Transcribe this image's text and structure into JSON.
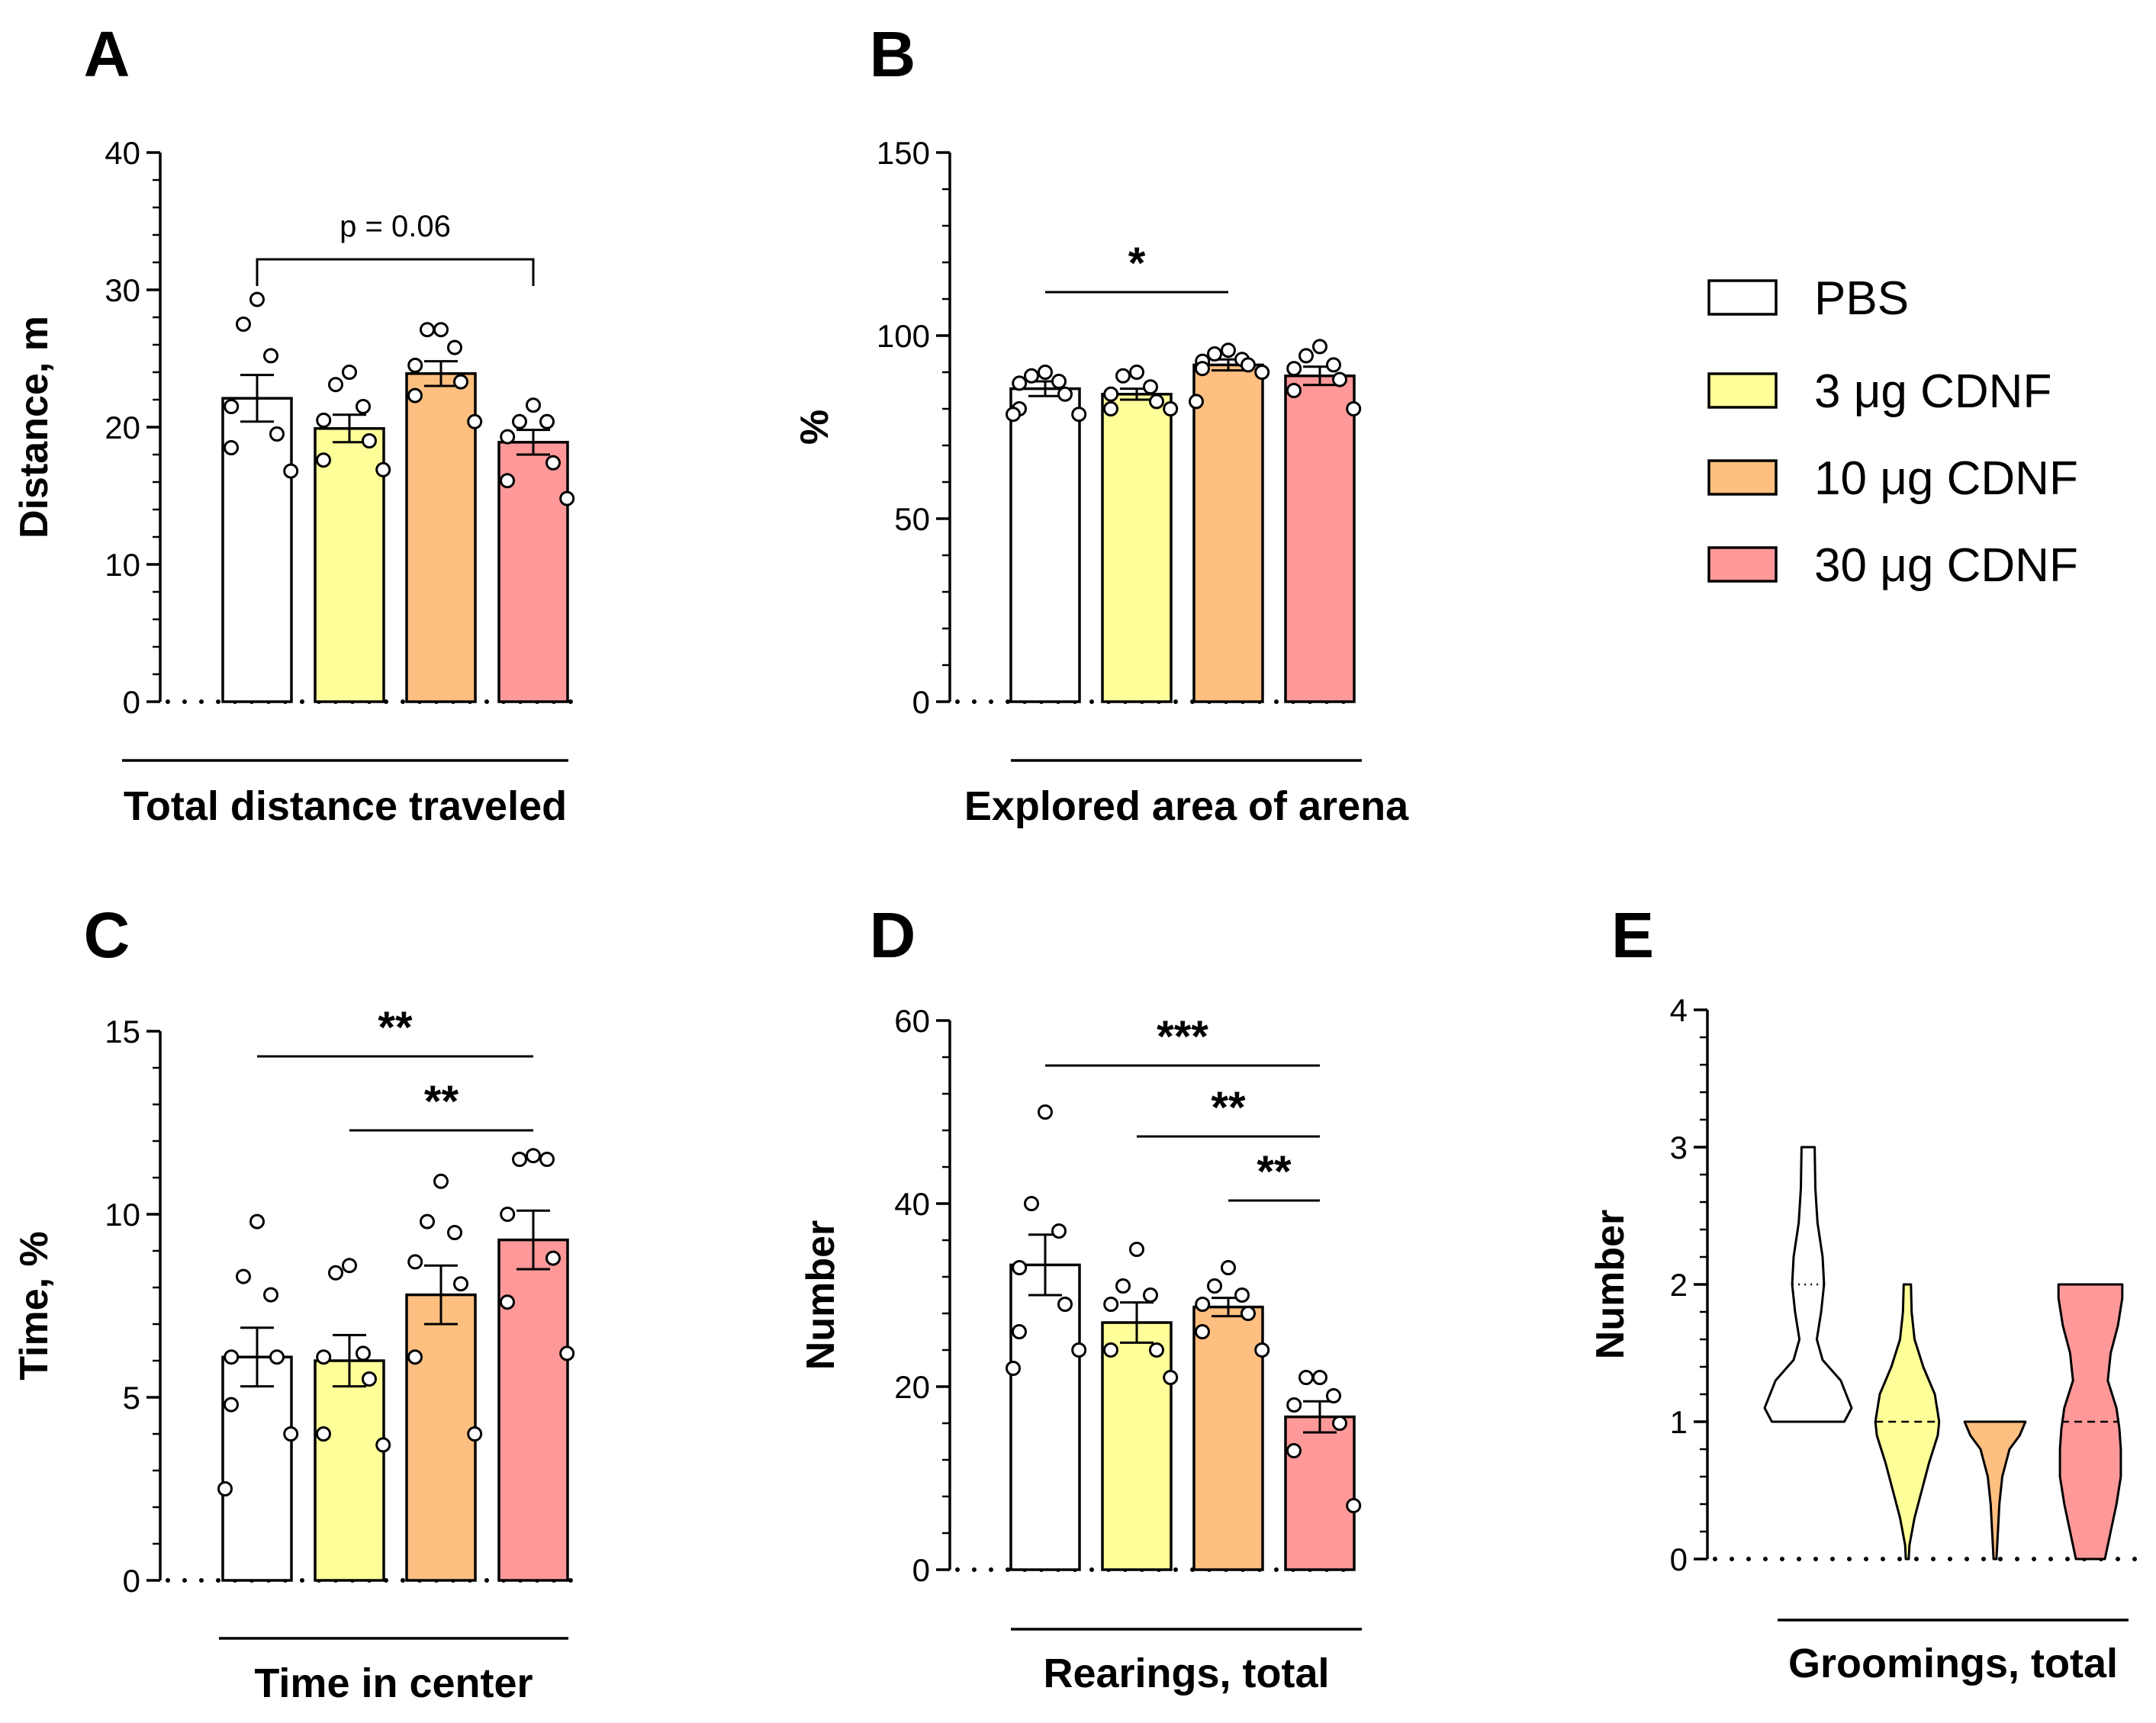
{
  "legend": [
    {
      "label": "PBS",
      "color": "#ffffff"
    },
    {
      "label": "3 μg CDNF",
      "color": "#ffff99"
    },
    {
      "label": "10 μg CDNF",
      "color": "#ffbf80"
    },
    {
      "label": "30 μg CDNF",
      "color": "#ff9999"
    }
  ],
  "chart_data": [
    {
      "panel": "A",
      "type": "bar",
      "categories": [
        "PBS",
        "3 μg CDNF",
        "10 μg CDNF",
        "30 μg CDNF"
      ],
      "values": [
        22.1,
        19.9,
        23.9,
        18.9
      ],
      "sem": [
        1.7,
        1.0,
        0.9,
        0.9
      ],
      "points": [
        [
          29.3,
          27.5,
          25.2,
          21.5,
          19.5,
          18.5,
          16.8
        ],
        [
          24.0,
          23.1,
          21.5,
          20.5,
          19.0,
          17.6,
          16.9
        ],
        [
          27.1,
          27.1,
          25.8,
          24.5,
          23.3,
          22.3,
          20.4
        ],
        [
          21.6,
          20.4,
          20.4,
          19.3,
          17.4,
          16.1,
          14.8
        ]
      ],
      "ylabel": "Distance, m",
      "xlabel": "Total distance traveled",
      "ylim": [
        0,
        40
      ],
      "yticks": [
        "0",
        "10",
        "20",
        "30",
        "40"
      ],
      "annotations": [
        {
          "from": 0,
          "to": 3,
          "text": "p = 0.06"
        }
      ]
    },
    {
      "panel": "B",
      "type": "bar",
      "categories": [
        "PBS",
        "3 μg CDNF",
        "10 μg CDNF",
        "30 μg CDNF"
      ],
      "values": [
        85.5,
        84.0,
        92.0,
        89.0
      ],
      "sem": [
        2.0,
        1.5,
        1.5,
        2.5
      ],
      "points": [
        [
          90.0,
          89.0,
          87.5,
          87.0,
          84.0,
          80.0,
          78.5,
          78.5
        ],
        [
          90.0,
          89.0,
          86.0,
          84.0,
          82.0,
          80.0,
          80.0
        ],
        [
          96.0,
          95.0,
          93.5,
          93.0,
          92.0,
          91.0,
          90.0,
          82.0
        ],
        [
          97.0,
          94.5,
          92.0,
          91.0,
          88.0,
          85.0,
          80.0
        ]
      ],
      "ylabel": "%",
      "xlabel": "Explored area of arena",
      "ylim": [
        0,
        150
      ],
      "yticks": [
        "0",
        "50",
        "100",
        "150"
      ],
      "annotations": [
        {
          "from": 0,
          "to": 2,
          "text": "*"
        }
      ]
    },
    {
      "panel": "C",
      "type": "bar",
      "categories": [
        "PBS",
        "3 μg CDNF",
        "10 μg CDNF",
        "30 μg CDNF"
      ],
      "values": [
        6.1,
        6.0,
        7.8,
        9.3
      ],
      "sem": [
        0.8,
        0.7,
        0.8,
        0.8
      ],
      "points": [
        [
          9.8,
          8.3,
          7.8,
          6.1,
          6.1,
          4.8,
          4.0,
          2.5
        ],
        [
          8.6,
          8.4,
          6.2,
          6.1,
          5.5,
          4.0,
          3.7
        ],
        [
          10.9,
          9.8,
          9.5,
          8.7,
          8.1,
          6.1,
          4.0
        ],
        [
          11.6,
          11.5,
          11.5,
          10.0,
          8.8,
          7.6,
          6.2
        ]
      ],
      "ylabel": "Time, %",
      "xlabel": "Time in center",
      "ylim": [
        0,
        15
      ],
      "yticks": [
        "0",
        "5",
        "10",
        "15"
      ],
      "annotations": [
        {
          "from": 0,
          "to": 3,
          "text": "**"
        },
        {
          "from": 1,
          "to": 3,
          "text": "**"
        }
      ]
    },
    {
      "panel": "D",
      "type": "bar",
      "categories": [
        "PBS",
        "3 μg CDNF",
        "10 μg CDNF",
        "30 μg CDNF"
      ],
      "values": [
        33.3,
        27.0,
        28.7,
        16.7
      ],
      "sem": [
        3.3,
        2.2,
        1.0,
        1.7
      ],
      "points": [
        [
          50.0,
          40.0,
          37.0,
          33.0,
          29.0,
          26.0,
          24.0,
          22.0
        ],
        [
          35.0,
          31.0,
          30.0,
          29.0,
          24.0,
          24.0,
          21.0
        ],
        [
          33.0,
          31.0,
          30.0,
          29.0,
          28.0,
          26.0,
          24.0
        ],
        [
          21.0,
          21.0,
          19.0,
          18.0,
          16.0,
          13.0,
          7.0
        ]
      ],
      "ylabel": "Number",
      "xlabel": "Rearings, total",
      "ylim": [
        0,
        60
      ],
      "yticks": [
        "0",
        "20",
        "40",
        "60"
      ],
      "annotations": [
        {
          "from": 0,
          "to": 3,
          "text": "***"
        },
        {
          "from": 1,
          "to": 3,
          "text": "**"
        },
        {
          "from": 2,
          "to": 3,
          "text": "**"
        }
      ]
    },
    {
      "panel": "E",
      "type": "violin",
      "categories": [
        "PBS",
        "3 μg CDNF",
        "10 μg CDNF",
        "30 μg CDNF"
      ],
      "medians": [
        2,
        1,
        1,
        1
      ],
      "violins": [
        [
          [
            1.0,
            0.5
          ],
          [
            1.1,
            0.6
          ],
          [
            1.3,
            0.45
          ],
          [
            1.45,
            0.2
          ],
          [
            1.6,
            0.12
          ],
          [
            1.8,
            0.18
          ],
          [
            2.0,
            0.22
          ],
          [
            2.2,
            0.2
          ],
          [
            2.45,
            0.13
          ],
          [
            2.7,
            0.1
          ],
          [
            3.0,
            0.09
          ]
        ],
        [
          [
            0.0,
            0.02
          ],
          [
            0.1,
            0.03
          ],
          [
            0.3,
            0.1
          ],
          [
            0.5,
            0.2
          ],
          [
            0.7,
            0.3
          ],
          [
            0.9,
            0.42
          ],
          [
            1.0,
            0.44
          ],
          [
            1.2,
            0.38
          ],
          [
            1.4,
            0.22
          ],
          [
            1.6,
            0.1
          ],
          [
            1.8,
            0.06
          ],
          [
            2.0,
            0.05
          ]
        ],
        [
          [
            0.0,
            0.02
          ],
          [
            0.2,
            0.04
          ],
          [
            0.4,
            0.06
          ],
          [
            0.6,
            0.1
          ],
          [
            0.8,
            0.2
          ],
          [
            0.9,
            0.34
          ],
          [
            1.0,
            0.42
          ]
        ],
        [
          [
            0.0,
            0.2
          ],
          [
            0.2,
            0.28
          ],
          [
            0.4,
            0.36
          ],
          [
            0.6,
            0.42
          ],
          [
            0.8,
            0.42
          ],
          [
            0.95,
            0.4
          ],
          [
            1.1,
            0.36
          ],
          [
            1.3,
            0.24
          ],
          [
            1.5,
            0.28
          ],
          [
            1.7,
            0.38
          ],
          [
            1.9,
            0.44
          ],
          [
            2.0,
            0.44
          ]
        ]
      ],
      "ylabel": "Number",
      "xlabel": "Groomings, total",
      "ylim": [
        0,
        4
      ],
      "yticks": [
        "0",
        "1",
        "2",
        "3",
        "4"
      ]
    }
  ]
}
